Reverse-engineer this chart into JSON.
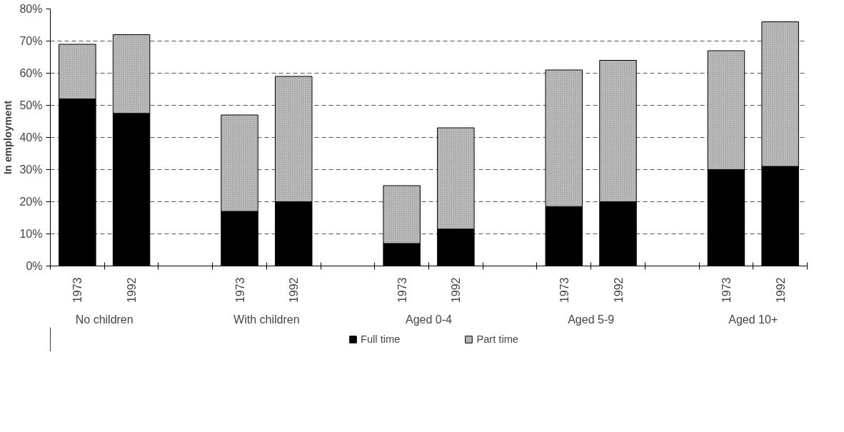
{
  "chart_data": {
    "type": "bar",
    "stacked": true,
    "ylabel": "In employment",
    "categories": [
      "1973",
      "1992",
      "1973",
      "1992",
      "1973",
      "1992",
      "1973",
      "1992",
      "1973",
      "1992"
    ],
    "series": [
      {
        "name": "Full time",
        "color": "#000000",
        "values": [
          52,
          47.5,
          17,
          20,
          7,
          11.5,
          18.5,
          20,
          30,
          31
        ]
      },
      {
        "name": "Part time",
        "color": "#d4d4d4",
        "values": [
          17,
          24.5,
          30,
          39,
          18,
          31.5,
          42.5,
          44,
          37,
          45
        ]
      }
    ],
    "annotations": [
      "No children",
      "With children",
      "Aged 0-4",
      "Aged 5-9",
      "Aged 10+"
    ],
    "ylim": [
      0,
      80
    ],
    "yticks": [
      {
        "value": 0,
        "label": "0%"
      },
      {
        "value": 10,
        "label": "10%"
      },
      {
        "value": 20,
        "label": "20%"
      },
      {
        "value": 30,
        "label": "30%"
      },
      {
        "value": 40,
        "label": "40%"
      },
      {
        "value": 50,
        "label": "50%"
      },
      {
        "value": 60,
        "label": "60%"
      },
      {
        "value": 70,
        "label": "70%"
      },
      {
        "value": 80,
        "label": "80%"
      }
    ],
    "grid": "y",
    "legend": "bottom"
  }
}
